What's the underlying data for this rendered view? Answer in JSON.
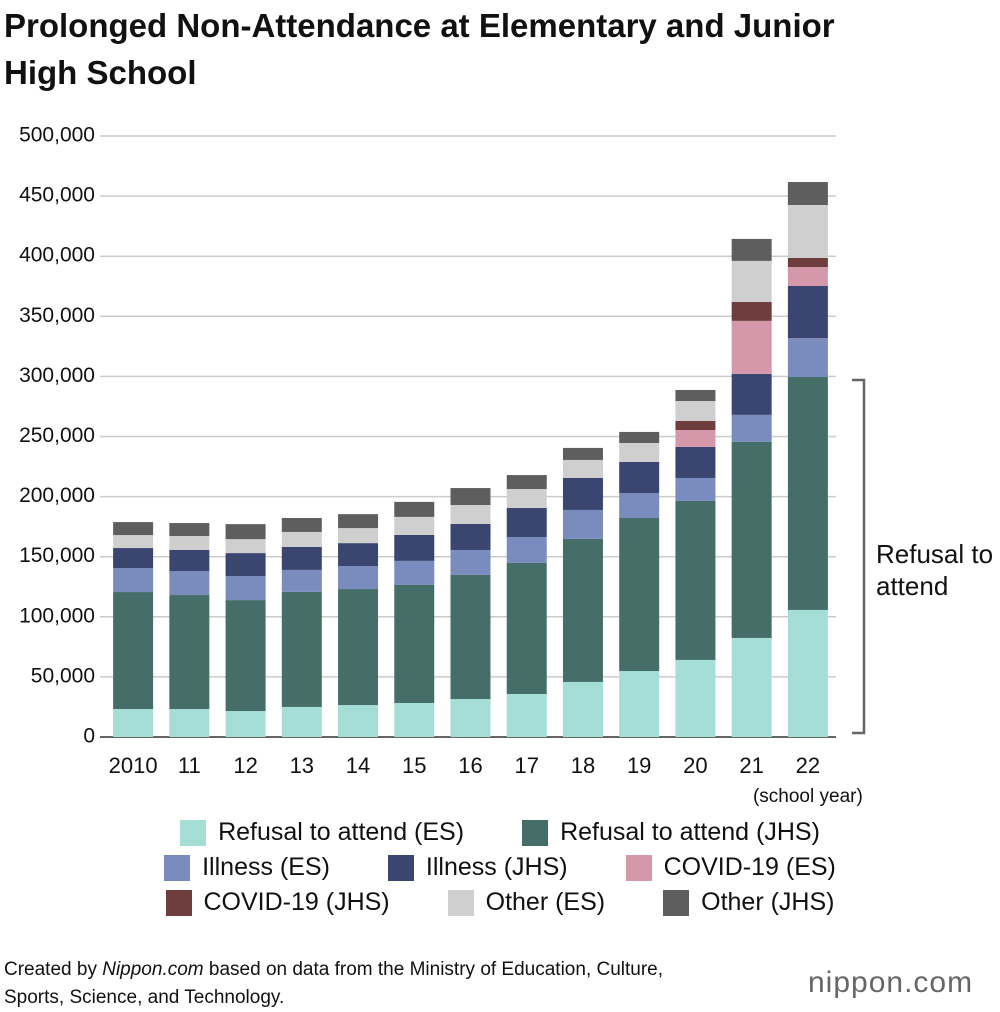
{
  "chart_data": {
    "type": "stacked-bar",
    "title": "Prolonged Non-Attendance at Elementary and Junior High School",
    "x_label": "(school year)",
    "annotation": "Refusal to attend",
    "categories": [
      "2010",
      "11",
      "12",
      "13",
      "14",
      "15",
      "16",
      "17",
      "18",
      "19",
      "20",
      "21",
      "22"
    ],
    "series": [
      {
        "name": "Refusal to attend (ES)",
        "color": "#a4ded6",
        "values": [
          23300,
          23300,
          21600,
          25000,
          26600,
          28300,
          31600,
          35800,
          45800,
          54900,
          64100,
          82400,
          105700
        ]
      },
      {
        "name": "Refusal to attend (JHS)",
        "color": "#456e69",
        "values": [
          97300,
          94800,
          92300,
          95700,
          96500,
          98200,
          103200,
          109000,
          119000,
          127300,
          132300,
          163100,
          193800
        ]
      },
      {
        "name": "Illness (ES)",
        "color": "#7a8bbd",
        "values": [
          20000,
          20000,
          20000,
          18300,
          19100,
          20000,
          20800,
          21600,
          24100,
          20800,
          19100,
          22500,
          32400
        ]
      },
      {
        "name": "Illness (JHS)",
        "color": "#3a4570",
        "values": [
          16600,
          17500,
          19100,
          19100,
          19100,
          21600,
          21600,
          24100,
          26600,
          25800,
          25800,
          34100,
          43300
        ]
      },
      {
        "name": "COVID-19 (ES)",
        "color": "#d498aa",
        "values": [
          0,
          0,
          0,
          0,
          0,
          0,
          0,
          0,
          0,
          0,
          14100,
          44100,
          15800
        ]
      },
      {
        "name": "COVID-19 (JHS)",
        "color": "#6e3d3d",
        "values": [
          0,
          0,
          0,
          0,
          0,
          0,
          0,
          0,
          0,
          0,
          7500,
          15800,
          7500
        ]
      },
      {
        "name": "Other (ES)",
        "color": "#cfcfcf",
        "values": [
          10800,
          11600,
          11600,
          12500,
          12500,
          15000,
          15800,
          15800,
          15000,
          15800,
          16600,
          34100,
          44100
        ]
      },
      {
        "name": "Other (JHS)",
        "color": "#5e5e5e",
        "values": [
          10800,
          10800,
          12500,
          11600,
          11600,
          12500,
          14100,
          11600,
          10000,
          9200,
          9200,
          18300,
          19100
        ]
      }
    ],
    "ylim": [
      0,
      500000
    ],
    "yticks": [
      0,
      {
        "value": 50000,
        "label": "50,000"
      },
      {
        "value": 100000,
        "label": "100,000"
      },
      {
        "value": 150000,
        "label": "150,000"
      },
      {
        "value": 200000,
        "label": "200,000"
      },
      {
        "value": 250000,
        "label": "250,000"
      },
      {
        "value": 300000,
        "label": "300,000"
      },
      {
        "value": 350000,
        "label": "350,000"
      },
      {
        "value": 400000,
        "label": "400,000"
      },
      {
        "value": 450000,
        "label": "450,000"
      },
      {
        "value": 500000,
        "label": "500,000"
      }
    ],
    "grid": true,
    "source": [
      "Created by ",
      "Nippon.com",
      " based on data from the Ministry of Education, Culture, Sports, Science, and Technology."
    ],
    "logo": "nippon.com"
  }
}
